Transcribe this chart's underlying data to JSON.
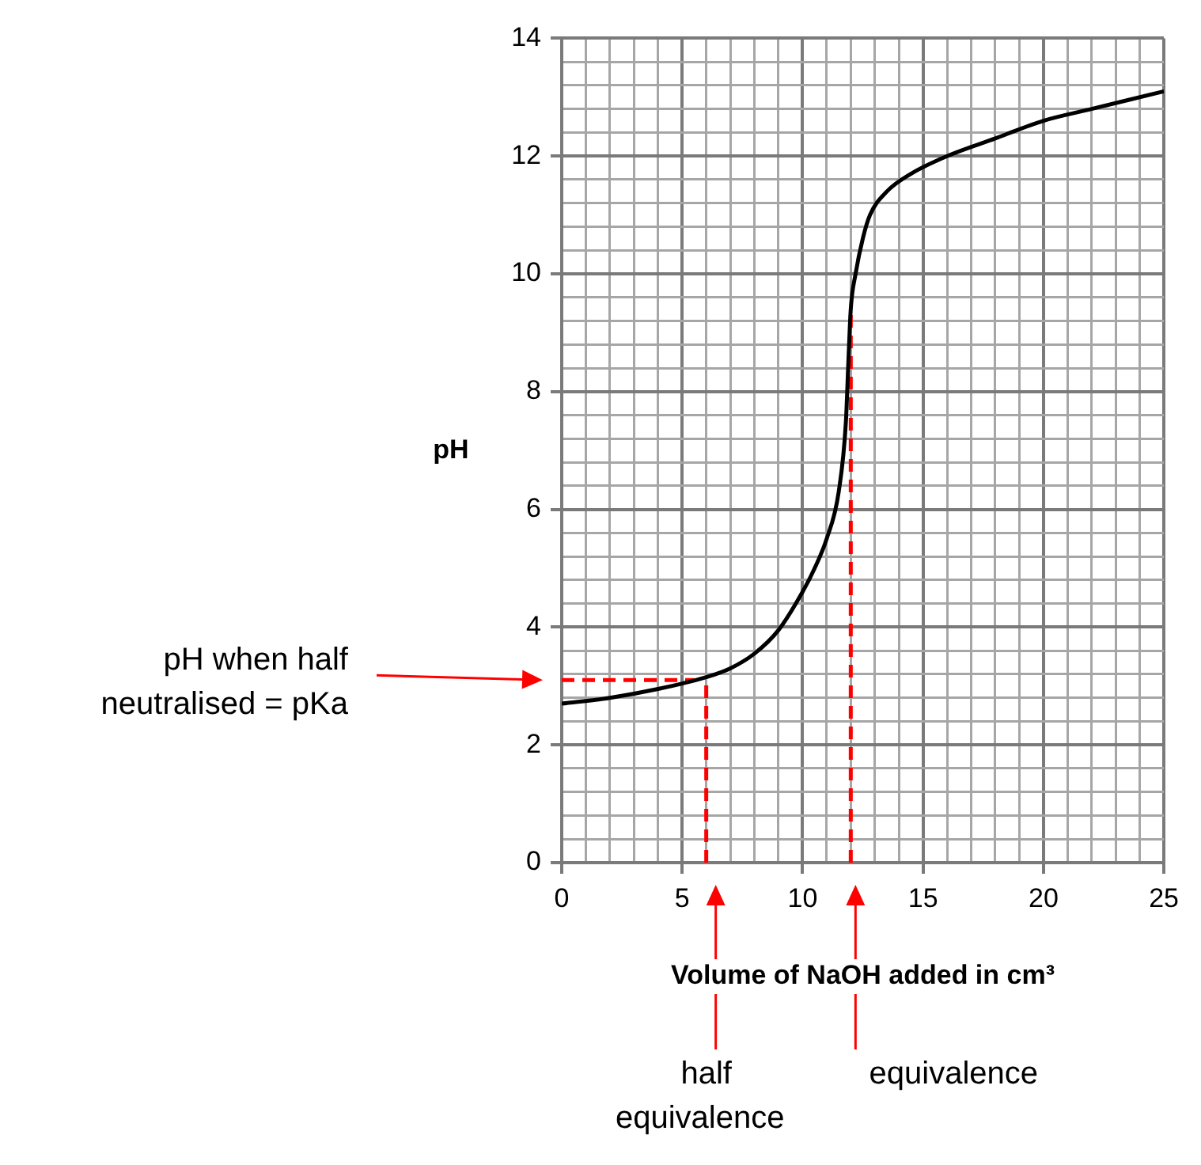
{
  "chart_data": {
    "type": "line",
    "xlabel": "Volume of NaOH added in cm³",
    "ylabel": "pH",
    "x": [
      0,
      2,
      4,
      6,
      7,
      8,
      9,
      10,
      10.5,
      11,
      11.5,
      11.8,
      11.9,
      12,
      12.2,
      12.5,
      12.8,
      13.5,
      14.5,
      16,
      18,
      20,
      22,
      25
    ],
    "series": [
      {
        "color": "#000000",
        "values": [
          2.7,
          2.8,
          2.95,
          3.15,
          3.3,
          3.55,
          3.95,
          4.6,
          5.0,
          5.5,
          6.3,
          7.5,
          8.5,
          9.4,
          10.0,
          10.6,
          11.0,
          11.4,
          11.7,
          12.0,
          12.3,
          12.6,
          12.8,
          13.1
        ]
      }
    ],
    "xlim": [
      0,
      25
    ],
    "ylim": [
      0,
      14
    ],
    "xticks": [
      0,
      {
        "value": 1,
        "label": null
      },
      {
        "value": 2,
        "label": null
      },
      {
        "value": 3,
        "label": null
      },
      {
        "value": 4,
        "label": null
      },
      5,
      {
        "value": 6,
        "label": null
      },
      {
        "value": 7,
        "label": null
      },
      {
        "value": 8,
        "label": null
      },
      {
        "value": 9,
        "label": null
      },
      10,
      {
        "value": 11,
        "label": null
      },
      {
        "value": 12,
        "label": null
      },
      {
        "value": 13,
        "label": null
      },
      {
        "value": 14,
        "label": null
      },
      15,
      {
        "value": 16,
        "label": null
      },
      {
        "value": 17,
        "label": null
      },
      {
        "value": 18,
        "label": null
      },
      {
        "value": 19,
        "label": null
      },
      20,
      {
        "value": 21,
        "label": null
      },
      {
        "value": 22,
        "label": null
      },
      {
        "value": 23,
        "label": null
      },
      {
        "value": 24,
        "label": null
      },
      25
    ],
    "yticks": [
      0,
      {
        "value": 0.4,
        "label": null
      },
      {
        "value": 0.8,
        "label": null
      },
      {
        "value": 1.2,
        "label": null
      },
      {
        "value": 1.6,
        "label": null
      },
      2,
      {
        "value": 2.4,
        "label": null
      },
      {
        "value": 2.8,
        "label": null
      },
      {
        "value": 3.2,
        "label": null
      },
      {
        "value": 3.6,
        "label": null
      },
      4,
      {
        "value": 4.4,
        "label": null
      },
      {
        "value": 4.8,
        "label": null
      },
      {
        "value": 5.2,
        "label": null
      },
      {
        "value": 5.6,
        "label": null
      },
      6,
      {
        "value": 6.4,
        "label": null
      },
      {
        "value": 6.8,
        "label": null
      },
      {
        "value": 7.2,
        "label": null
      },
      {
        "value": 7.6,
        "label": null
      },
      8,
      {
        "value": 8.4,
        "label": null
      },
      {
        "value": 8.8,
        "label": null
      },
      {
        "value": 9.2,
        "label": null
      },
      {
        "value": 9.6,
        "label": null
      },
      10,
      {
        "value": 10.4,
        "label": null
      },
      {
        "value": 10.8,
        "label": null
      },
      {
        "value": 11.2,
        "label": null
      },
      {
        "value": 11.6,
        "label": null
      },
      12,
      {
        "value": 12.4,
        "label": null
      },
      {
        "value": 12.8,
        "label": null
      },
      {
        "value": 13.2,
        "label": null
      },
      {
        "value": 13.6,
        "label": null
      },
      14
    ],
    "grid": true,
    "marker": "none",
    "line_style": "solid",
    "legend": false,
    "ref_lines": [
      {
        "axis": "y",
        "value": 3.1,
        "color": "#ff0000",
        "line_style": "dashed"
      },
      {
        "axis": "x",
        "value": 6,
        "color": "#ff0000",
        "line_style": "dashed"
      },
      {
        "axis": "x",
        "value": 12,
        "color": "#ff0000",
        "line_style": "dashed"
      }
    ],
    "annotations": [
      "pH when half\nneutralised = pKa",
      "half\nequivalence",
      "equivalence"
    ]
  }
}
